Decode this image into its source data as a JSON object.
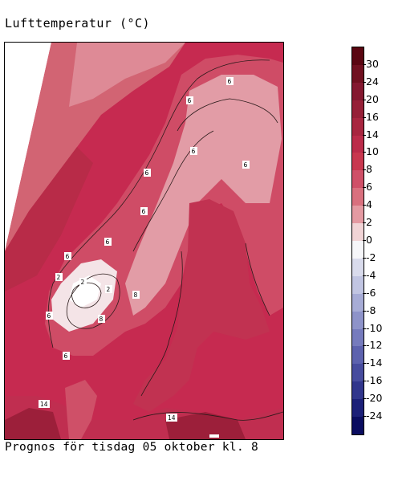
{
  "header": {
    "title": "Lufttemperatur (°C)"
  },
  "footer": {
    "caption": "Prognos för tisdag 05 oktober kl. 8"
  },
  "legend": {
    "labels": [
      "30",
      "24",
      "20",
      "16",
      "14",
      "10",
      "8",
      "6",
      "4",
      "2",
      "0",
      "-2",
      "-4",
      "-6",
      "-8",
      "-10",
      "-12",
      "-14",
      "-16",
      "-20",
      "-24"
    ],
    "colors": [
      "#5a0612",
      "#701020",
      "#841830",
      "#962038",
      "#a82640",
      "#bb2c4a",
      "#c8384f",
      "#cf5068",
      "#d9707e",
      "#e49aa2",
      "#f1d4d6",
      "#f6f6f9",
      "#d9dbec",
      "#c1c5e2",
      "#a7acd6",
      "#8e93c9",
      "#767bbd",
      "#5d62ae",
      "#474c9e",
      "#31368c",
      "#1c2078",
      "#0b0d60"
    ]
  },
  "map": {
    "contour_labels": [
      "6",
      "6",
      "6",
      "6",
      "6",
      "6",
      "6",
      "6",
      "6",
      "2",
      "2",
      "2",
      "8",
      "8",
      "6",
      "14",
      "14"
    ],
    "colors": {
      "sea_deep": "#b3283e",
      "sea": "#c4304f",
      "land_warm": "#c73355",
      "land_cool": "#da6e7c",
      "land_pale": "#e7a3ac",
      "mountain": "#f6e8ea",
      "hot": "#9c1f3a",
      "contour": "#2a1a1a"
    }
  }
}
